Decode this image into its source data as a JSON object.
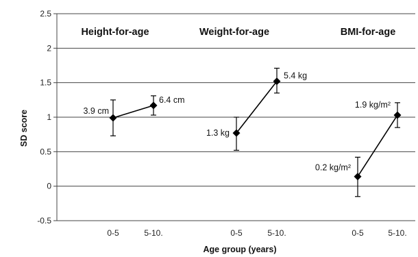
{
  "chart_data": {
    "type": "line",
    "xlabel": "Age group (years)",
    "ylabel": "SD score",
    "ylim": [
      -0.5,
      2.5
    ],
    "yticks": [
      "2.5",
      "2",
      "1.5",
      "1",
      "0.5",
      "0",
      "-0.5"
    ],
    "ytick_values": [
      2.5,
      2,
      1.5,
      1,
      0.5,
      0,
      -0.5
    ],
    "grid": true,
    "panels": [
      {
        "title": "Height-for-age",
        "categories": [
          "0-5",
          "5-10."
        ],
        "values": [
          0.99,
          1.17
        ],
        "err_low": [
          0.73,
          1.03
        ],
        "err_high": [
          1.25,
          1.31
        ],
        "labels": [
          "3.9 cm",
          "6.4 cm"
        ],
        "show_tick_labels": false
      },
      {
        "title": "Weight-for-age",
        "categories": [
          "0-5",
          "5-10."
        ],
        "values": [
          0.77,
          1.52
        ],
        "err_low": [
          0.52,
          1.35
        ],
        "err_high": [
          1.0,
          1.71
        ],
        "labels": [
          "1.3 kg",
          "5.4 kg"
        ],
        "show_tick_labels": true
      },
      {
        "title": "BMI-for-age",
        "categories": [
          "0-5",
          "5-10."
        ],
        "values": [
          0.14,
          1.03
        ],
        "err_low": [
          -0.15,
          0.85
        ],
        "err_high": [
          0.42,
          1.21
        ],
        "labels": [
          "0.2 kg/m²",
          "1.9 kg/m²"
        ],
        "show_tick_labels": true
      }
    ],
    "x_tick_labels": [
      "0-5",
      "5-10.",
      "0-5",
      "5-10.",
      "0-5",
      "5-10."
    ]
  }
}
